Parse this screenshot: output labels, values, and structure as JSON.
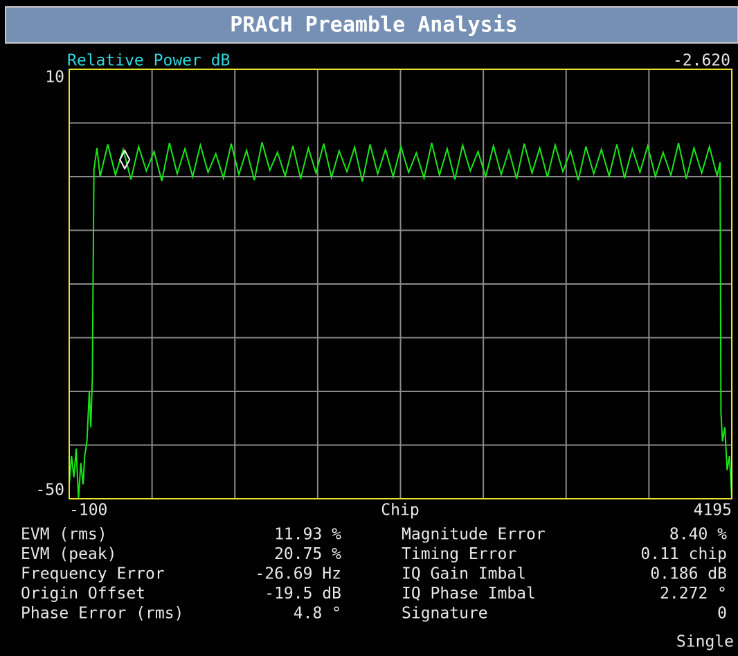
{
  "header": {
    "title": "PRACH Preamble Analysis"
  },
  "chart_data": {
    "type": "line",
    "y_label": "Relative Power dB",
    "x_label": "Chip",
    "xlim": [
      -100,
      4195
    ],
    "xticks": [
      -100,
      4195
    ],
    "ylim": [
      -50,
      10
    ],
    "yticks": [
      -50,
      10
    ],
    "xgrid": [
      436.875,
      973.75,
      1510.625,
      2047.5,
      2584.375,
      3121.25,
      3658.125
    ],
    "ygrid": [
      2.5,
      -5,
      -12.5,
      -20,
      -27.5,
      -35,
      -42.5
    ],
    "grid": true,
    "series": [
      {
        "name": "Relative Power",
        "color": "#19e619",
        "x": [
          -100,
          -85,
          -70,
          -55,
          -40,
          -25,
          -10,
          0,
          15,
          30,
          40,
          50,
          60,
          80,
          100,
          150,
          200,
          250,
          300,
          350,
          400,
          450,
          500,
          550,
          600,
          650,
          700,
          750,
          800,
          850,
          900,
          950,
          1000,
          1050,
          1100,
          1150,
          1200,
          1250,
          1300,
          1350,
          1400,
          1450,
          1500,
          1550,
          1600,
          1650,
          1700,
          1750,
          1800,
          1850,
          1900,
          1950,
          2000,
          2050,
          2100,
          2150,
          2200,
          2250,
          2300,
          2350,
          2400,
          2450,
          2500,
          2550,
          2600,
          2650,
          2700,
          2750,
          2800,
          2850,
          2900,
          2950,
          3000,
          3050,
          3100,
          3150,
          3200,
          3250,
          3300,
          3350,
          3400,
          3450,
          3500,
          3550,
          3600,
          3650,
          3700,
          3750,
          3800,
          3850,
          3900,
          3950,
          4000,
          4050,
          4100,
          4119,
          4125,
          4135,
          4150,
          4165,
          4180,
          4195
        ],
        "values": [
          -48,
          -44,
          -47,
          -43,
          -50,
          -45,
          -48,
          -44,
          -42,
          -35,
          -40,
          -33,
          -4,
          -1,
          -5,
          -0.5,
          -4.8,
          -1.2,
          -5.4,
          -0.8,
          -4.2,
          -1.5,
          -5.6,
          -0.3,
          -4.6,
          -1.1,
          -5,
          -0.6,
          -4.4,
          -1.8,
          -5.2,
          -0.4,
          -4.7,
          -1.3,
          -5.5,
          -0.2,
          -4.1,
          -1.6,
          -4.9,
          -0.7,
          -5.3,
          -1,
          -4.5,
          -0.4,
          -5.1,
          -1.4,
          -4.3,
          -0.9,
          -5.7,
          -0.5,
          -4.6,
          -1.2,
          -5,
          -0.8,
          -4.4,
          -1.7,
          -5.2,
          -0.3,
          -4.8,
          -1.1,
          -5.4,
          -0.6,
          -4.2,
          -1.5,
          -5,
          -0.7,
          -4.7,
          -1.3,
          -5.3,
          -0.4,
          -4.5,
          -1,
          -5.1,
          -0.6,
          -4.3,
          -1.4,
          -5.5,
          -0.8,
          -4.6,
          -1.2,
          -4.9,
          -0.5,
          -5.2,
          -1.1,
          -4.4,
          -0.7,
          -5,
          -1.6,
          -4.8,
          -0.3,
          -5.3,
          -1,
          -4.5,
          -0.8,
          -4.9,
          -3,
          -38,
          -42,
          -40,
          -46,
          -44,
          -50
        ]
      }
    ],
    "marker": {
      "x": 260,
      "value": -2.62,
      "label": "-2.620"
    }
  },
  "measurements": {
    "left": [
      {
        "label": "EVM (rms)",
        "value": "11.93 %"
      },
      {
        "label": "EVM (peak)",
        "value": "20.75 %"
      },
      {
        "label": "Frequency Error",
        "value": "-26.69 Hz"
      },
      {
        "label": "Origin Offset",
        "value": "-19.5 dB"
      },
      {
        "label": "Phase Error (rms)",
        "value": "4.8 °"
      }
    ],
    "right": [
      {
        "label": "Magnitude Error",
        "value": "8.40 %"
      },
      {
        "label": "Timing Error",
        "value": "0.11 chip"
      },
      {
        "label": "IQ Gain Imbal",
        "value": "0.186 dB"
      },
      {
        "label": "IQ Phase Imbal",
        "value": "2.272 °"
      },
      {
        "label": "Signature",
        "value": "0"
      }
    ]
  },
  "status": "Single"
}
